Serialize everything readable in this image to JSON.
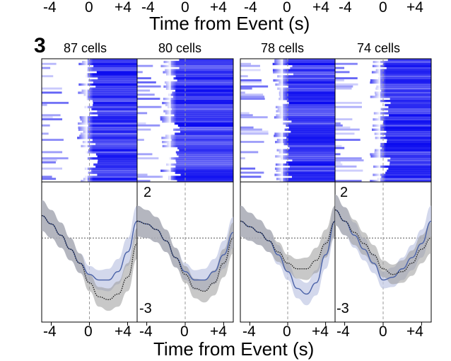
{
  "top_strip": {
    "tick_labels": [
      "-4",
      "0",
      "+4",
      "-4",
      "0",
      "+4",
      "-4",
      "0",
      "+4",
      "-4",
      "0",
      "+4"
    ],
    "axis_title": "Time from Event (s)"
  },
  "panel": {
    "letter": "3",
    "cell_counts": [
      "87 cells",
      "80 cells",
      "78 cells",
      "74 cells"
    ],
    "y_top_label": "2",
    "y_bottom_label": "-3",
    "bottom_tick_labels": [
      "-4",
      "0",
      "+4",
      "-4",
      "0",
      "+4",
      "-4",
      "0",
      "+4",
      "-4",
      "0",
      "+4"
    ],
    "bottom_axis_title": "Time from Event (s)",
    "colors": {
      "heatmap": "#0a0af0",
      "blue_trace": "#4a62a8",
      "black_trace": "#222222",
      "blue_band": "#c4cbe6",
      "gray_band": "#9a9a9a"
    }
  },
  "chart_data": {
    "type": "line",
    "xlabel": "Time from Event (s)",
    "x": [
      -5,
      -4,
      -3,
      -2,
      -1,
      0,
      1,
      2,
      3,
      4,
      5
    ],
    "xlim": [
      -5,
      5
    ],
    "ylim": [
      -3,
      2
    ],
    "subplots": [
      {
        "title": "87 cells",
        "series": [
          {
            "color": "blue",
            "values": [
              0.8,
              0.5,
              0.1,
              -0.4,
              -0.9,
              -1.3,
              -1.5,
              -1.5,
              -1.2,
              -0.5,
              0.6
            ]
          },
          {
            "color": "black",
            "values": [
              0.8,
              0.5,
              0.1,
              -0.4,
              -0.9,
              -1.6,
              -2.1,
              -2.2,
              -2.0,
              -1.4,
              -0.2
            ]
          }
        ]
      },
      {
        "title": "80 cells",
        "series": [
          {
            "color": "blue",
            "values": [
              0.6,
              0.5,
              0.3,
              -0.1,
              -0.7,
              -1.2,
              -1.5,
              -1.5,
              -1.2,
              -0.6,
              0.2
            ]
          },
          {
            "color": "black",
            "values": [
              0.6,
              0.5,
              0.3,
              -0.1,
              -0.7,
              -1.3,
              -1.8,
              -1.9,
              -1.6,
              -0.9,
              0.0
            ]
          }
        ]
      },
      {
        "title": "78 cells",
        "series": [
          {
            "color": "blue",
            "values": [
              0.6,
              0.4,
              0.2,
              -0.1,
              -0.6,
              -1.2,
              -1.8,
              -2.0,
              -1.6,
              -0.6,
              0.6
            ]
          },
          {
            "color": "black",
            "values": [
              0.6,
              0.4,
              0.2,
              -0.1,
              -0.5,
              -0.9,
              -1.1,
              -1.1,
              -0.8,
              -0.2,
              0.6
            ]
          }
        ]
      },
      {
        "title": "74 cells",
        "series": [
          {
            "color": "blue",
            "values": [
              1.0,
              0.6,
              0.1,
              -0.4,
              -0.9,
              -1.5,
              -1.4,
              -1.1,
              -0.7,
              -0.2,
              0.6
            ]
          },
          {
            "color": "black",
            "values": [
              1.0,
              0.6,
              0.2,
              -0.2,
              -0.6,
              -1.1,
              -1.3,
              -1.2,
              -0.9,
              -0.4,
              0.0
            ]
          }
        ]
      }
    ]
  }
}
